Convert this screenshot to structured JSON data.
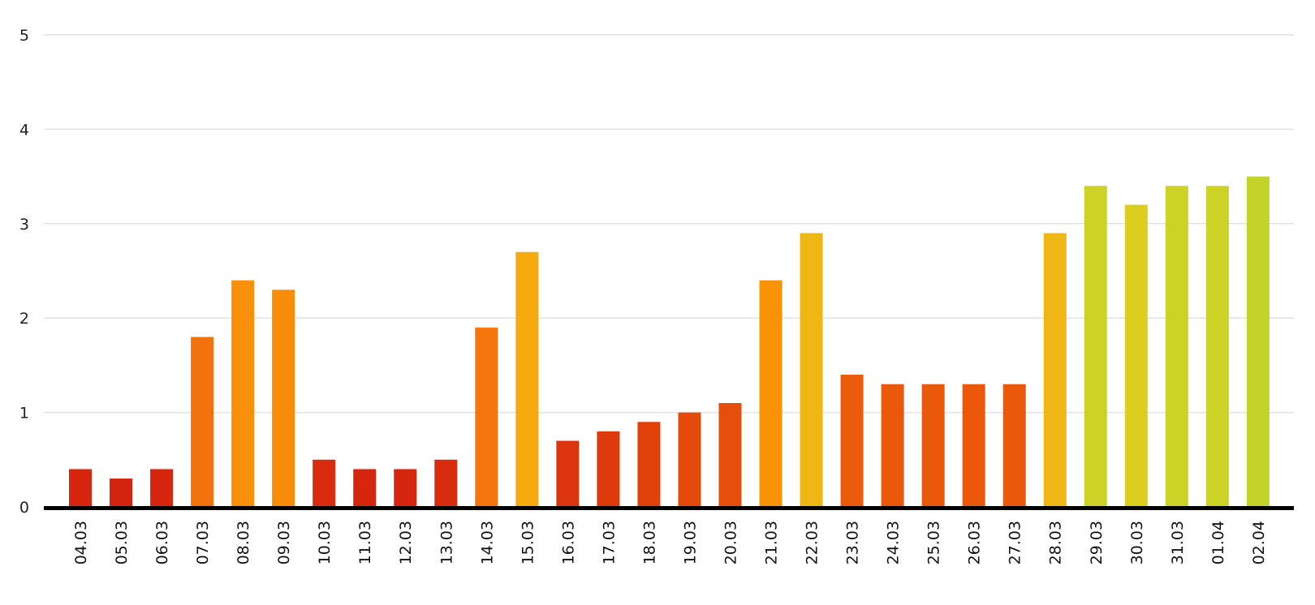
{
  "chart_data": {
    "type": "bar",
    "title": "",
    "xlabel": "",
    "ylabel": "",
    "ylim": [
      0,
      5
    ],
    "yticks": [
      0,
      1,
      2,
      3,
      4,
      5
    ],
    "grid": true,
    "legend": "none",
    "categories": [
      "04.03",
      "05.03",
      "06.03",
      "07.03",
      "08.03",
      "09.03",
      "10.03",
      "11.03",
      "12.03",
      "13.03",
      "14.03",
      "15.03",
      "16.03",
      "17.03",
      "18.03",
      "19.03",
      "20.03",
      "21.03",
      "22.03",
      "23.03",
      "24.03",
      "25.03",
      "26.03",
      "27.03",
      "28.03",
      "29.03",
      "30.03",
      "31.03",
      "01.04",
      "02.04"
    ],
    "values": [
      0.4,
      0.3,
      0.4,
      1.8,
      2.4,
      2.3,
      0.5,
      0.4,
      0.4,
      0.5,
      1.9,
      2.7,
      0.7,
      0.8,
      0.9,
      1.0,
      1.1,
      2.4,
      2.9,
      1.4,
      1.3,
      1.3,
      1.3,
      1.3,
      2.9,
      3.4,
      3.2,
      3.4,
      3.4,
      3.5
    ],
    "colors": [
      "#d7260f",
      "#d4230f",
      "#d7260f",
      "#f4720d",
      "#fa9009",
      "#f98c0a",
      "#d92c0e",
      "#d7260f",
      "#d7260f",
      "#d92c0e",
      "#f5760c",
      "#f7a910",
      "#db350d",
      "#de3b0d",
      "#e1420c",
      "#e44a0c",
      "#e64f0b",
      "#fa9208",
      "#efb615",
      "#ea5b0b",
      "#e9580b",
      "#e9580b",
      "#e9580b",
      "#e9580b",
      "#efb615",
      "#cdd226",
      "#dcce1e",
      "#cdd226",
      "#cdd226",
      "#c4d32a"
    ]
  }
}
